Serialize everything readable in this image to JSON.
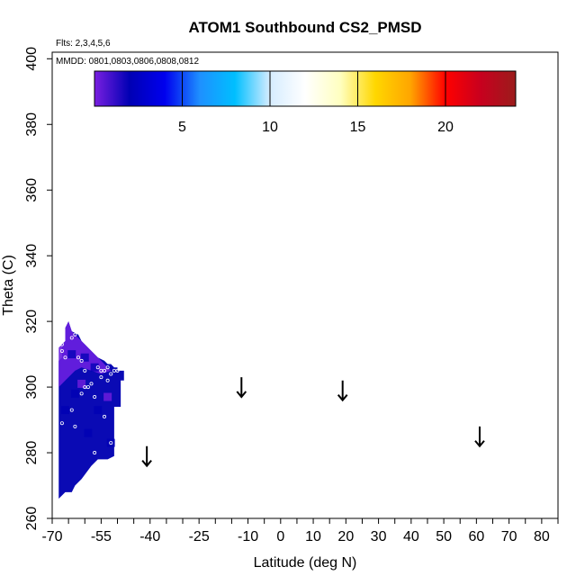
{
  "chart_data": {
    "type": "heatmap",
    "title": "ATOM1 Southbound CS2_PMSD",
    "subtitle_flights": "Flts: 2,3,4,5,6",
    "subtitle_dates": "MMDD: 0801,0803,0806,0808,0812",
    "xlabel": "Latitude (deg N)",
    "ylabel": "Theta (C)",
    "xlim": [
      -70,
      85
    ],
    "ylim": [
      260,
      402
    ],
    "x_ticks": [
      -70,
      -65,
      -60,
      -55,
      -50,
      -45,
      -40,
      -35,
      -30,
      -25,
      -20,
      -15,
      -10,
      -5,
      0,
      5,
      10,
      15,
      20,
      25,
      30,
      35,
      40,
      45,
      50,
      55,
      60,
      65,
      70,
      75,
      80,
      85
    ],
    "x_tick_labels": [
      "-70",
      "-55",
      "-40",
      "-25",
      "-10",
      "0",
      "10",
      "20",
      "30",
      "40",
      "50",
      "60",
      "70",
      "80"
    ],
    "x_tick_label_values": [
      -70,
      -55,
      -40,
      -25,
      -10,
      0,
      10,
      20,
      30,
      40,
      50,
      60,
      70,
      80
    ],
    "y_tick_labels": [
      "260",
      "280",
      "300",
      "320",
      "340",
      "360",
      "380",
      "400"
    ],
    "y_tick_values": [
      260,
      280,
      300,
      320,
      340,
      360,
      380,
      400
    ],
    "colorbar": {
      "range": [
        0,
        24
      ],
      "tick_values": [
        5,
        10,
        15,
        20
      ],
      "tick_labels": [
        "5",
        "10",
        "15",
        "20"
      ],
      "colors": [
        "#7a1fe0",
        "#0000b4",
        "#0000ee",
        "#1e90ff",
        "#00bfff",
        "#d6ecff",
        "#ffffff",
        "#ffffc0",
        "#ffd700",
        "#ffa500",
        "#ff0000",
        "#c8001e",
        "#9b1c1c"
      ]
    },
    "field_outline": {
      "lat": [
        -68,
        -68,
        -67,
        -67,
        -66,
        -66,
        -65,
        -64,
        -62,
        -61,
        -60,
        -58,
        -57,
        -56,
        -54,
        -53,
        -52,
        -51,
        -50,
        -50,
        -48,
        -48,
        -49,
        -49,
        -51,
        -51,
        -51,
        -53,
        -56,
        -58,
        -61,
        -63,
        -64,
        -66,
        -67,
        -68
      ],
      "theta": [
        266,
        308,
        309,
        313,
        314,
        318,
        320,
        317,
        316,
        314,
        313,
        311,
        310,
        309,
        308,
        307,
        307,
        306,
        306,
        305,
        305,
        302,
        302,
        294,
        294,
        287,
        279,
        278,
        278,
        276,
        272,
        270,
        268,
        268,
        267,
        266
      ]
    },
    "upper_region": {
      "lat": [
        -68,
        -68,
        -66,
        -66,
        -65,
        -64,
        -62,
        -60,
        -57,
        -55,
        -53,
        -52,
        -55,
        -58,
        -61,
        -63,
        -65,
        -66,
        -68
      ],
      "theta": [
        300,
        312,
        314,
        318,
        320,
        317,
        315,
        313,
        310,
        308,
        306,
        305,
        304,
        305,
        306,
        305,
        303,
        302,
        300
      ]
    },
    "patches": [
      {
        "lat": -64,
        "theta": 310,
        "value": 2.2
      },
      {
        "lat": -60,
        "theta": 309,
        "value": 1.4
      },
      {
        "lat": -57,
        "theta": 306,
        "value": 1.8
      },
      {
        "lat": -61,
        "theta": 301,
        "value": 0.9
      },
      {
        "lat": -63,
        "theta": 298,
        "value": 1.7
      },
      {
        "lat": -56,
        "theta": 293,
        "value": 1.2
      },
      {
        "lat": -59,
        "theta": 286,
        "value": 1.5
      },
      {
        "lat": -53,
        "theta": 297,
        "value": 0.8
      },
      {
        "lat": -66,
        "theta": 293,
        "value": 1.3
      },
      {
        "lat": -52,
        "theta": 283,
        "value": 1.6
      }
    ],
    "sample_points": {
      "lat": [
        -67,
        -67,
        -66,
        -64,
        -63,
        -62,
        -61,
        -60,
        -56,
        -55,
        -54,
        -53,
        -52,
        -51,
        -50,
        -58,
        -59,
        -60,
        -57,
        -55,
        -53,
        -61,
        -64,
        -67,
        -54,
        -52,
        -63,
        -57
      ],
      "theta": [
        313,
        311,
        309,
        315,
        316,
        309,
        308,
        305,
        306,
        305,
        305,
        306,
        304,
        305,
        305,
        301,
        300,
        300,
        297,
        303,
        302,
        298,
        293,
        289,
        291,
        283,
        288,
        280
      ]
    },
    "arrows": [
      {
        "lat": -41,
        "theta_top": 282,
        "theta_bottom": 276
      },
      {
        "lat": -12,
        "theta_top": 303,
        "theta_bottom": 297
      },
      {
        "lat": 19,
        "theta_top": 302,
        "theta_bottom": 296
      },
      {
        "lat": 61,
        "theta_top": 288,
        "theta_bottom": 282
      }
    ]
  }
}
